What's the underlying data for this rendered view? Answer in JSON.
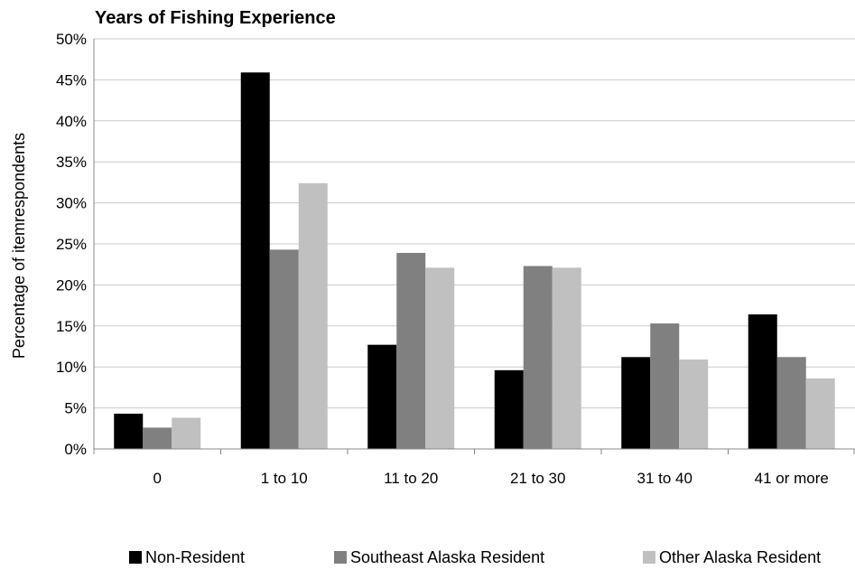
{
  "chart_data": {
    "type": "bar",
    "title": "Years of Fishing Experience",
    "xlabel": "",
    "ylabel": "Percentage of itemrespondents",
    "categories": [
      "0",
      "1 to 10",
      "11 to 20",
      "21 to 30",
      "31 to 40",
      "41 or more"
    ],
    "ylim": [
      0,
      50
    ],
    "y_ticks": [
      "0%",
      "5%",
      "10%",
      "15%",
      "20%",
      "25%",
      "30%",
      "35%",
      "40%",
      "45%",
      "50%"
    ],
    "grid": true,
    "legend_position": "bottom",
    "series": [
      {
        "name": "Non-Resident",
        "color": "#000000",
        "values": [
          4.3,
          45.9,
          12.7,
          9.6,
          11.2,
          16.4
        ]
      },
      {
        "name": "Southeast Alaska Resident",
        "color": "#808080",
        "values": [
          2.6,
          24.3,
          23.9,
          22.3,
          15.3,
          11.2
        ]
      },
      {
        "name": "Other Alaska Resident",
        "color": "#c0c0c0",
        "values": [
          3.8,
          32.4,
          22.1,
          22.1,
          10.9,
          8.6
        ]
      }
    ]
  }
}
